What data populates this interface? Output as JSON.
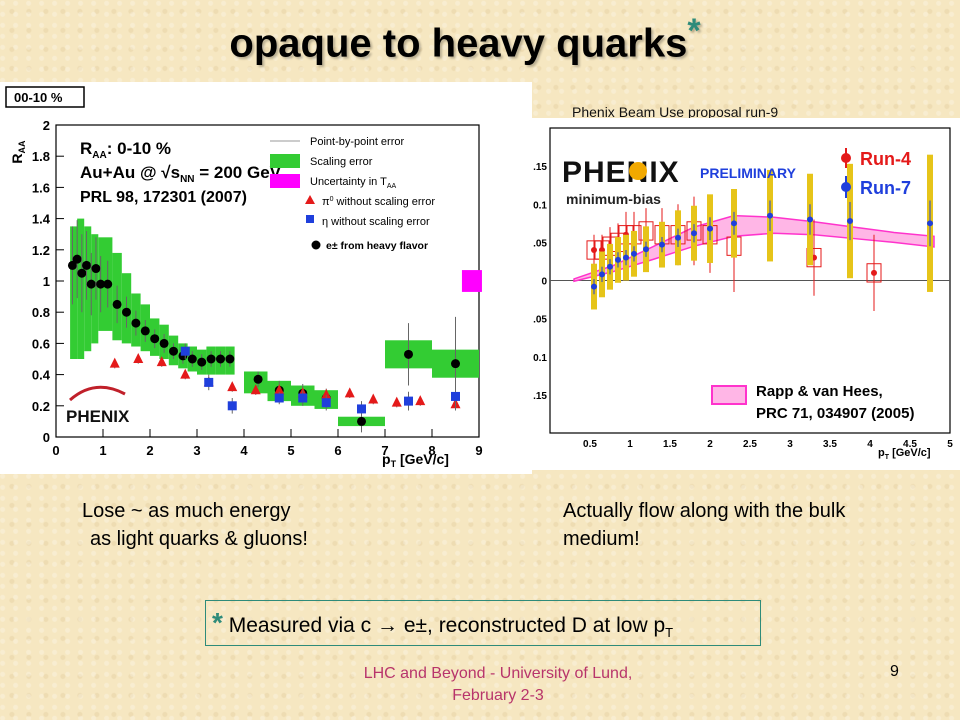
{
  "slide": {
    "title": "opaque to heavy quarks",
    "title_star": "*",
    "proposal_label": "Phenix Beam Use proposal run-9",
    "caption_left_1": "Lose ~ as much energy",
    "caption_left_2": "as light quarks & gluons!",
    "caption_right": "Actually flow along with the bulk medium!",
    "footnote_star": "*",
    "footnote_text": "Measured via c → e±, reconstructed D at low p",
    "footnote_sub": "T",
    "footer_1": "LHC and Beyond - University of Lund,",
    "footer_2": "February 2-3",
    "page_number": "9"
  },
  "chart_data": [
    {
      "type": "scatter",
      "centrality_box": "00-10 %",
      "ylabel": "R",
      "ylabel_sub": "AA",
      "xlabel": "p",
      "xlabel_sub": "T",
      "xlabel_unit": " [GeV/c]",
      "xlim": [
        0,
        9
      ],
      "ylim": [
        0,
        2
      ],
      "x_ticks": [
        "0",
        "1",
        "2",
        "3",
        "4",
        "5",
        "6",
        "7",
        "8",
        "9"
      ],
      "y_ticks": [
        "0",
        "0.2",
        "0.4",
        "0.6",
        "0.8",
        "1",
        "1.2",
        "1.4",
        "1.6",
        "1.8",
        "2"
      ],
      "annotation_1": "R",
      "annotation_1_sub": "AA",
      "annotation_1_rest": ": 0-10 %",
      "annotation_2": "Au+Au @ √s",
      "annotation_2_sub": "NN",
      "annotation_2_rest": " = 200 GeV",
      "annotation_3": "PRL 98, 172301 (2007)",
      "logo": "PHENIX",
      "colors": {
        "scaling": "#33cc33",
        "pi0": "#e41a1a",
        "eta": "#1f3fdc",
        "electron": "#000000",
        "taa": "#ff00ff"
      },
      "legend": [
        {
          "label": "Point-by-point error",
          "marker": "line"
        },
        {
          "label": "Scaling error",
          "marker": "green-box"
        },
        {
          "label": "Uncertainty in T",
          "sub": "AA",
          "marker": "magenta-box"
        },
        {
          "label": "π",
          "sup": "0",
          "rest": " without scaling error",
          "marker": "red-triangle"
        },
        {
          "label": "η without scaling error",
          "marker": "blue-square"
        },
        {
          "label": "e± from heavy flavor",
          "marker": "black-circle"
        }
      ],
      "taa_uncertainty": {
        "x": 8.85,
        "y_low": 0.93,
        "y_high": 1.07
      },
      "series": [
        {
          "name": "e± from heavy flavor",
          "marker": "circle",
          "x": [
            0.35,
            0.45,
            0.55,
            0.65,
            0.75,
            0.85,
            0.95,
            1.1,
            1.3,
            1.5,
            1.7,
            1.9,
            2.1,
            2.3,
            2.5,
            2.7,
            2.9,
            3.1,
            3.3,
            3.5,
            3.7,
            4.3,
            4.75,
            5.25,
            5.75,
            6.5,
            7.5,
            8.5
          ],
          "y": [
            1.1,
            1.14,
            1.05,
            1.1,
            0.98,
            1.08,
            0.98,
            0.98,
            0.85,
            0.8,
            0.73,
            0.68,
            0.63,
            0.6,
            0.55,
            0.52,
            0.5,
            0.48,
            0.5,
            0.5,
            0.5,
            0.37,
            0.3,
            0.28,
            0.25,
            0.1,
            0.53,
            0.47
          ],
          "err": [
            0.25,
            0.25,
            0.25,
            0.22,
            0.2,
            0.2,
            0.18,
            0.15,
            0.12,
            0.1,
            0.08,
            0.07,
            0.06,
            0.06,
            0.05,
            0.05,
            0.05,
            0.05,
            0.05,
            0.05,
            0.05,
            0.05,
            0.06,
            0.06,
            0.06,
            0.07,
            0.2,
            0.3
          ]
        },
        {
          "name": "π0 without scaling error",
          "marker": "triangle",
          "x": [
            1.25,
            1.75,
            2.25,
            2.75,
            3.25,
            3.75,
            4.25,
            4.75,
            5.25,
            5.75,
            6.25,
            6.75,
            7.25,
            7.75,
            8.5
          ],
          "y": [
            0.47,
            0.5,
            0.48,
            0.4,
            0.35,
            0.32,
            0.3,
            0.3,
            0.28,
            0.27,
            0.28,
            0.24,
            0.22,
            0.23,
            0.21
          ],
          "err": [
            0.03,
            0.03,
            0.03,
            0.03,
            0.03,
            0.03,
            0.03,
            0.03,
            0.03,
            0.03,
            0.03,
            0.03,
            0.03,
            0.03,
            0.04
          ]
        },
        {
          "name": "η without scaling error",
          "marker": "square",
          "x": [
            2.75,
            3.25,
            3.75,
            4.75,
            5.25,
            5.75,
            6.5,
            7.5,
            8.5
          ],
          "y": [
            0.55,
            0.35,
            0.2,
            0.25,
            0.25,
            0.22,
            0.18,
            0.23,
            0.26
          ],
          "err": [
            0.05,
            0.05,
            0.05,
            0.04,
            0.05,
            0.05,
            0.05,
            0.06,
            0.08
          ]
        }
      ],
      "scaling_bands": [
        {
          "x": [
            0.3,
            0.45
          ],
          "y": [
            0.5,
            1.35
          ]
        },
        {
          "x": [
            0.45,
            0.6
          ],
          "y": [
            0.5,
            1.4
          ]
        },
        {
          "x": [
            0.6,
            0.75
          ],
          "y": [
            0.55,
            1.35
          ]
        },
        {
          "x": [
            0.75,
            0.9
          ],
          "y": [
            0.6,
            1.3
          ]
        },
        {
          "x": [
            0.9,
            1.2
          ],
          "y": [
            0.68,
            1.28
          ]
        },
        {
          "x": [
            1.2,
            1.4
          ],
          "y": [
            0.62,
            1.18
          ]
        },
        {
          "x": [
            1.4,
            1.6
          ],
          "y": [
            0.6,
            1.05
          ]
        },
        {
          "x": [
            1.6,
            1.8
          ],
          "y": [
            0.58,
            0.92
          ]
        },
        {
          "x": [
            1.8,
            2.0
          ],
          "y": [
            0.55,
            0.85
          ]
        },
        {
          "x": [
            2.0,
            2.2
          ],
          "y": [
            0.52,
            0.76
          ]
        },
        {
          "x": [
            2.2,
            2.4
          ],
          "y": [
            0.5,
            0.72
          ]
        },
        {
          "x": [
            2.4,
            2.6
          ],
          "y": [
            0.46,
            0.65
          ]
        },
        {
          "x": [
            2.6,
            2.8
          ],
          "y": [
            0.44,
            0.6
          ]
        },
        {
          "x": [
            2.8,
            3.0
          ],
          "y": [
            0.42,
            0.58
          ]
        },
        {
          "x": [
            3.0,
            3.2
          ],
          "y": [
            0.4,
            0.56
          ]
        },
        {
          "x": [
            3.2,
            3.4
          ],
          "y": [
            0.4,
            0.58
          ]
        },
        {
          "x": [
            3.4,
            3.6
          ],
          "y": [
            0.4,
            0.58
          ]
        },
        {
          "x": [
            3.6,
            3.8
          ],
          "y": [
            0.4,
            0.58
          ]
        },
        {
          "x": [
            4.0,
            4.5
          ],
          "y": [
            0.28,
            0.42
          ]
        },
        {
          "x": [
            4.5,
            5.0
          ],
          "y": [
            0.23,
            0.36
          ]
        },
        {
          "x": [
            5.0,
            5.5
          ],
          "y": [
            0.2,
            0.33
          ]
        },
        {
          "x": [
            5.5,
            6.0
          ],
          "y": [
            0.18,
            0.3
          ]
        },
        {
          "x": [
            6.0,
            7.0
          ],
          "y": [
            0.07,
            0.13
          ]
        },
        {
          "x": [
            7.0,
            8.0
          ],
          "y": [
            0.44,
            0.62
          ]
        },
        {
          "x": [
            8.0,
            9.0
          ],
          "y": [
            0.38,
            0.56
          ]
        }
      ]
    },
    {
      "type": "scatter",
      "logo": "PHENIX",
      "preliminary": "PRELIMINARY",
      "subtitle": "minimum-bias",
      "xlabel": "p",
      "xlabel_sub": "T",
      "xlabel_unit": " [GeV/c]",
      "xlim": [
        0,
        5
      ],
      "ylim": [
        -0.2,
        0.2
      ],
      "x_ticks": [
        "0.5",
        "1",
        "1.5",
        "2",
        "2.5",
        "3",
        "3.5",
        "4",
        "4.5",
        "5"
      ],
      "y_ticks": [
        ".15",
        "0.1",
        ".05",
        "0",
        ".05",
        "0.1",
        ".15"
      ],
      "legend": [
        {
          "label": "Run-4",
          "color": "#e41a1a"
        },
        {
          "label": "Run-7",
          "color": "#1f3fdc"
        }
      ],
      "model_label_1": "Rapp & van Hees,",
      "model_label_2": "PRC 71, 034907 (2005)",
      "model_color": "#ff66cc",
      "model_band": {
        "x": [
          0.3,
          0.8,
          1.3,
          1.8,
          2.3,
          2.8,
          3.3,
          3.8,
          4.3,
          4.8
        ],
        "y_low": [
          -0.001,
          0.012,
          0.028,
          0.045,
          0.058,
          0.062,
          0.06,
          0.055,
          0.05,
          0.044
        ],
        "y_high": [
          0.002,
          0.02,
          0.045,
          0.07,
          0.085,
          0.083,
          0.077,
          0.07,
          0.063,
          0.058
        ]
      },
      "series": [
        {
          "name": "Run-4",
          "marker": "circle",
          "x": [
            0.55,
            0.65,
            0.75,
            0.85,
            0.95,
            1.05,
            1.2,
            1.4,
            1.6,
            1.8,
            2.0,
            2.3,
            3.3,
            4.05
          ],
          "y": [
            0.04,
            0.04,
            0.045,
            0.05,
            0.06,
            0.06,
            0.065,
            0.06,
            0.06,
            0.065,
            0.06,
            0.045,
            0.03,
            0.01
          ],
          "err": [
            0.02,
            0.02,
            0.025,
            0.025,
            0.03,
            0.03,
            0.03,
            0.035,
            0.04,
            0.045,
            0.05,
            0.06,
            0.05,
            0.05
          ]
        },
        {
          "name": "Run-7",
          "marker": "circle",
          "x": [
            0.55,
            0.65,
            0.75,
            0.85,
            0.95,
            1.05,
            1.2,
            1.4,
            1.6,
            1.8,
            2.0,
            2.3,
            2.75,
            3.25,
            3.75,
            4.75
          ],
          "y": [
            -0.008,
            0.008,
            0.018,
            0.027,
            0.03,
            0.035,
            0.041,
            0.047,
            0.056,
            0.062,
            0.068,
            0.075,
            0.085,
            0.08,
            0.078,
            0.075
          ],
          "err": [
            0.01,
            0.01,
            0.01,
            0.01,
            0.01,
            0.01,
            0.01,
            0.01,
            0.012,
            0.012,
            0.015,
            0.015,
            0.02,
            0.02,
            0.025,
            0.03
          ]
        }
      ]
    }
  ]
}
